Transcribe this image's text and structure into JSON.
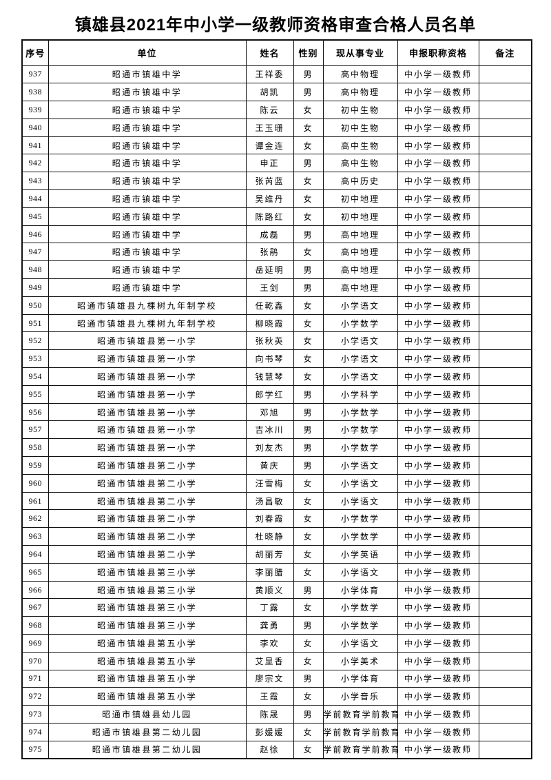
{
  "page": {
    "title": "镇雄县2021年中小学一级教师资格审查合格人员名单"
  },
  "table": {
    "columns": [
      {
        "key": "no",
        "label": "序号"
      },
      {
        "key": "unit",
        "label": "单位"
      },
      {
        "key": "name",
        "label": "姓名"
      },
      {
        "key": "gender",
        "label": "性别"
      },
      {
        "key": "major",
        "label": "现从事专业"
      },
      {
        "key": "title",
        "label": "申报职称资格"
      },
      {
        "key": "note",
        "label": "备注"
      }
    ],
    "row_keys": [
      "no",
      "unit",
      "name",
      "gender",
      "major",
      "title",
      "note"
    ],
    "rows": [
      {
        "no": "937",
        "unit": "昭通市镇雄中学",
        "name": "王祥委",
        "gender": "男",
        "major": "高中物理",
        "title": "中小学一级教师",
        "note": ""
      },
      {
        "no": "938",
        "unit": "昭通市镇雄中学",
        "name": "胡凯",
        "gender": "男",
        "major": "高中物理",
        "title": "中小学一级教师",
        "note": ""
      },
      {
        "no": "939",
        "unit": "昭通市镇雄中学",
        "name": "陈云",
        "gender": "女",
        "major": "初中生物",
        "title": "中小学一级教师",
        "note": ""
      },
      {
        "no": "940",
        "unit": "昭通市镇雄中学",
        "name": "王玉珊",
        "gender": "女",
        "major": "初中生物",
        "title": "中小学一级教师",
        "note": ""
      },
      {
        "no": "941",
        "unit": "昭通市镇雄中学",
        "name": "谭金连",
        "gender": "女",
        "major": "高中生物",
        "title": "中小学一级教师",
        "note": ""
      },
      {
        "no": "942",
        "unit": "昭通市镇雄中学",
        "name": "申正",
        "gender": "男",
        "major": "高中生物",
        "title": "中小学一级教师",
        "note": ""
      },
      {
        "no": "943",
        "unit": "昭通市镇雄中学",
        "name": "张芮蓝",
        "gender": "女",
        "major": "高中历史",
        "title": "中小学一级教师",
        "note": ""
      },
      {
        "no": "944",
        "unit": "昭通市镇雄中学",
        "name": "吴维丹",
        "gender": "女",
        "major": "初中地理",
        "title": "中小学一级教师",
        "note": ""
      },
      {
        "no": "945",
        "unit": "昭通市镇雄中学",
        "name": "陈路红",
        "gender": "女",
        "major": "初中地理",
        "title": "中小学一级教师",
        "note": ""
      },
      {
        "no": "946",
        "unit": "昭通市镇雄中学",
        "name": "成磊",
        "gender": "男",
        "major": "高中地理",
        "title": "中小学一级教师",
        "note": ""
      },
      {
        "no": "947",
        "unit": "昭通市镇雄中学",
        "name": "张鹃",
        "gender": "女",
        "major": "高中地理",
        "title": "中小学一级教师",
        "note": ""
      },
      {
        "no": "948",
        "unit": "昭通市镇雄中学",
        "name": "岳延明",
        "gender": "男",
        "major": "高中地理",
        "title": "中小学一级教师",
        "note": ""
      },
      {
        "no": "949",
        "unit": "昭通市镇雄中学",
        "name": "王剑",
        "gender": "男",
        "major": "高中地理",
        "title": "中小学一级教师",
        "note": ""
      },
      {
        "no": "950",
        "unit": "昭通市镇雄县九棵树九年制学校",
        "name": "任乾鑫",
        "gender": "女",
        "major": "小学语文",
        "title": "中小学一级教师",
        "note": ""
      },
      {
        "no": "951",
        "unit": "昭通市镇雄县九棵树九年制学校",
        "name": "柳晓霞",
        "gender": "女",
        "major": "小学数学",
        "title": "中小学一级教师",
        "note": ""
      },
      {
        "no": "952",
        "unit": "昭通市镇雄县第一小学",
        "name": "张秋英",
        "gender": "女",
        "major": "小学语文",
        "title": "中小学一级教师",
        "note": ""
      },
      {
        "no": "953",
        "unit": "昭通市镇雄县第一小学",
        "name": "向书琴",
        "gender": "女",
        "major": "小学语文",
        "title": "中小学一级教师",
        "note": ""
      },
      {
        "no": "954",
        "unit": "昭通市镇雄县第一小学",
        "name": "钱慧琴",
        "gender": "女",
        "major": "小学语文",
        "title": "中小学一级教师",
        "note": ""
      },
      {
        "no": "955",
        "unit": "昭通市镇雄县第一小学",
        "name": "郎学红",
        "gender": "男",
        "major": "小学科学",
        "title": "中小学一级教师",
        "note": ""
      },
      {
        "no": "956",
        "unit": "昭通市镇雄县第一小学",
        "name": "邓旭",
        "gender": "男",
        "major": "小学数学",
        "title": "中小学一级教师",
        "note": ""
      },
      {
        "no": "957",
        "unit": "昭通市镇雄县第一小学",
        "name": "吉冰川",
        "gender": "男",
        "major": "小学数学",
        "title": "中小学一级教师",
        "note": ""
      },
      {
        "no": "958",
        "unit": "昭通市镇雄县第一小学",
        "name": "刘友杰",
        "gender": "男",
        "major": "小学数学",
        "title": "中小学一级教师",
        "note": ""
      },
      {
        "no": "959",
        "unit": "昭通市镇雄县第二小学",
        "name": "黄庆",
        "gender": "男",
        "major": "小学语文",
        "title": "中小学一级教师",
        "note": ""
      },
      {
        "no": "960",
        "unit": "昭通市镇雄县第二小学",
        "name": "汪雪梅",
        "gender": "女",
        "major": "小学语文",
        "title": "中小学一级教师",
        "note": ""
      },
      {
        "no": "961",
        "unit": "昭通市镇雄县第二小学",
        "name": "汤昌敏",
        "gender": "女",
        "major": "小学语文",
        "title": "中小学一级教师",
        "note": ""
      },
      {
        "no": "962",
        "unit": "昭通市镇雄县第二小学",
        "name": "刘春霞",
        "gender": "女",
        "major": "小学数学",
        "title": "中小学一级教师",
        "note": ""
      },
      {
        "no": "963",
        "unit": "昭通市镇雄县第二小学",
        "name": "杜晓静",
        "gender": "女",
        "major": "小学数学",
        "title": "中小学一级教师",
        "note": ""
      },
      {
        "no": "964",
        "unit": "昭通市镇雄县第二小学",
        "name": "胡丽芳",
        "gender": "女",
        "major": "小学英语",
        "title": "中小学一级教师",
        "note": ""
      },
      {
        "no": "965",
        "unit": "昭通市镇雄县第三小学",
        "name": "李丽腊",
        "gender": "女",
        "major": "小学语文",
        "title": "中小学一级教师",
        "note": ""
      },
      {
        "no": "966",
        "unit": "昭通市镇雄县第三小学",
        "name": "黄顺义",
        "gender": "男",
        "major": "小学体育",
        "title": "中小学一级教师",
        "note": ""
      },
      {
        "no": "967",
        "unit": "昭通市镇雄县第三小学",
        "name": "丁露",
        "gender": "女",
        "major": "小学数学",
        "title": "中小学一级教师",
        "note": ""
      },
      {
        "no": "968",
        "unit": "昭通市镇雄县第三小学",
        "name": "龚勇",
        "gender": "男",
        "major": "小学数学",
        "title": "中小学一级教师",
        "note": ""
      },
      {
        "no": "969",
        "unit": "昭通市镇雄县第五小学",
        "name": "李欢",
        "gender": "女",
        "major": "小学语文",
        "title": "中小学一级教师",
        "note": ""
      },
      {
        "no": "970",
        "unit": "昭通市镇雄县第五小学",
        "name": "艾显香",
        "gender": "女",
        "major": "小学美术",
        "title": "中小学一级教师",
        "note": ""
      },
      {
        "no": "971",
        "unit": "昭通市镇雄县第五小学",
        "name": "廖宗文",
        "gender": "男",
        "major": "小学体育",
        "title": "中小学一级教师",
        "note": ""
      },
      {
        "no": "972",
        "unit": "昭通市镇雄县第五小学",
        "name": "王霞",
        "gender": "女",
        "major": "小学音乐",
        "title": "中小学一级教师",
        "note": ""
      },
      {
        "no": "973",
        "unit": "昭通市镇雄县幼儿园",
        "name": "陈晟",
        "gender": "男",
        "major": "学前教育学前教育",
        "title": "中小学一级教师",
        "note": ""
      },
      {
        "no": "974",
        "unit": "昭通市镇雄县第二幼儿园",
        "name": "彭媛媛",
        "gender": "女",
        "major": "学前教育学前教育",
        "title": "中小学一级教师",
        "note": ""
      },
      {
        "no": "975",
        "unit": "昭通市镇雄县第二幼儿园",
        "name": "赵徐",
        "gender": "女",
        "major": "学前教育学前教育",
        "title": "中小学一级教师",
        "note": ""
      }
    ]
  }
}
